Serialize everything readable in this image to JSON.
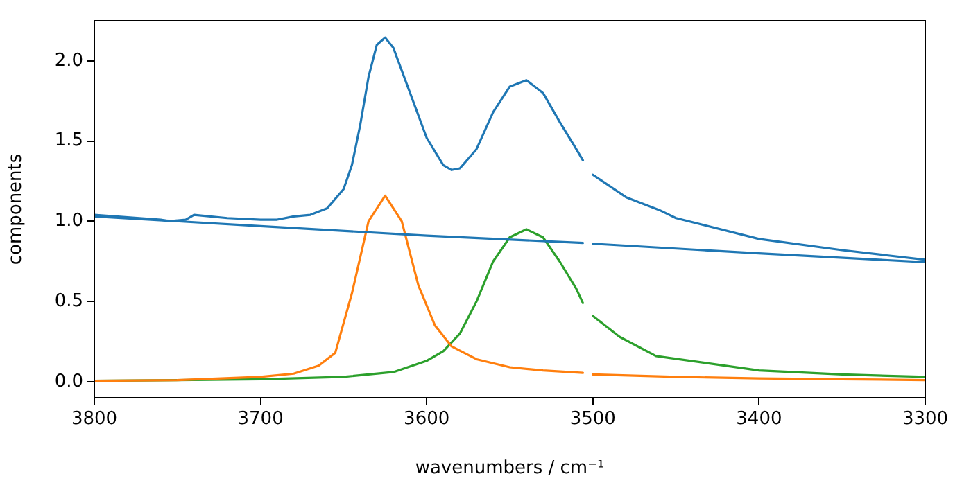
{
  "chart_data": {
    "type": "line",
    "xlabel": "wavenumbers / cm⁻¹",
    "ylabel": "components",
    "xlim": [
      3800,
      3300
    ],
    "xticks": [
      3800,
      3700,
      3600,
      3500,
      3400,
      3300
    ],
    "ylim": [
      -0.1,
      2.25
    ],
    "yticks": [
      {
        "value": 0,
        "label": "0.0"
      },
      0.5,
      {
        "value": 1,
        "label": "1.0"
      },
      1.5,
      {
        "value": 2,
        "label": "2.0"
      }
    ],
    "grid": false,
    "legend": false,
    "marker": "none",
    "line_style": "solid",
    "series": [
      {
        "color": "#1f77b4",
        "x": [
          3800,
          3760,
          3755,
          3745,
          3740,
          3720,
          3700,
          3690,
          3680,
          3670,
          3660,
          3650,
          3645,
          3640,
          3635,
          3630,
          3625,
          3620,
          3610,
          3600,
          3590,
          3585,
          3580,
          3570,
          3560,
          3550,
          3540,
          3530,
          3520,
          3510,
          3506,
          3503,
          3500,
          3480,
          3460,
          3450,
          3400,
          3350,
          3300
        ],
        "values": [
          1.04,
          1.01,
          1.0,
          1.01,
          1.04,
          1.02,
          1.01,
          1.01,
          1.03,
          1.04,
          1.08,
          1.2,
          1.35,
          1.6,
          1.9,
          2.1,
          2.145,
          2.08,
          1.8,
          1.52,
          1.35,
          1.32,
          1.33,
          1.45,
          1.68,
          1.84,
          1.88,
          1.8,
          1.62,
          1.45,
          1.38,
          null,
          1.29,
          1.15,
          1.07,
          1.02,
          0.89,
          0.82,
          0.76
        ]
      },
      {
        "color": "#1f77b4",
        "x": [
          3800,
          3700,
          3600,
          3506,
          3503,
          3500,
          3400,
          3300
        ],
        "values": [
          1.03,
          0.97,
          0.91,
          0.865,
          null,
          0.86,
          0.8,
          0.745
        ]
      },
      {
        "color": "#ff7f0e",
        "x": [
          3800,
          3750,
          3700,
          3680,
          3665,
          3655,
          3645,
          3635,
          3625,
          3615,
          3605,
          3595,
          3585,
          3570,
          3550,
          3530,
          3506,
          3503,
          3500,
          3450,
          3400,
          3350,
          3300
        ],
        "values": [
          0.005,
          0.01,
          0.03,
          0.05,
          0.1,
          0.18,
          0.55,
          1.0,
          1.16,
          1.0,
          0.6,
          0.35,
          0.22,
          0.14,
          0.09,
          0.07,
          0.055,
          null,
          0.045,
          0.03,
          0.02,
          0.015,
          0.01
        ]
      },
      {
        "color": "#2ca02c",
        "x": [
          3800,
          3700,
          3650,
          3620,
          3600,
          3590,
          3580,
          3570,
          3560,
          3550,
          3540,
          3530,
          3520,
          3510,
          3506,
          3503,
          3500,
          3484,
          3462,
          3400,
          3350,
          3300
        ],
        "values": [
          0.005,
          0.015,
          0.03,
          0.06,
          0.13,
          0.19,
          0.3,
          0.5,
          0.75,
          0.9,
          0.95,
          0.9,
          0.75,
          0.58,
          0.49,
          null,
          0.41,
          0.28,
          0.16,
          0.07,
          0.045,
          0.03
        ]
      }
    ]
  }
}
